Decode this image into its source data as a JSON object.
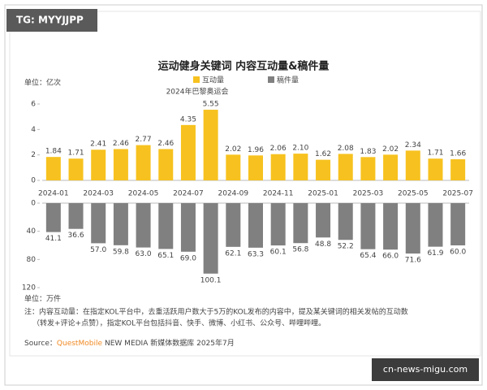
{
  "watermark": "TG: MYYJJPP",
  "site": "cn-news-migu.com",
  "notes": [
    "注：内容互动量：在指定KOL平台中，去重活跃用户数大于5万的KOL发布的内容中，提及某关键词的相关发帖的互动数",
    "（转发+评论+点赞），指定KOL平台包括抖音、快手、微博、小红书、公众号、哔哩哔哩。"
  ],
  "source": {
    "prefix": "Source：",
    "brand": "QuestMobile",
    "text": "NEW MEDIA 新媒体数据库 2025年7月"
  },
  "chart_data": [
    {
      "type": "bar",
      "title": "运动健身关键词 内容互动量&稿件量",
      "y_label": "单位：亿次",
      "annotation": "2024年巴黎奥运会",
      "categories": [
        "2024-01",
        null,
        "2024-03",
        null,
        "2024-05",
        null,
        "2024-07",
        null,
        "2024-09",
        null,
        "2024-11",
        null,
        "2025-01",
        null,
        "2025-03",
        null,
        "2025-05",
        null,
        "2025-07"
      ],
      "series": [
        {
          "name": "互动量",
          "color": "#f7c21f",
          "values": [
            1.84,
            1.71,
            2.41,
            2.46,
            2.77,
            2.46,
            4.35,
            5.55,
            2.02,
            1.96,
            2.06,
            2.1,
            1.62,
            2.08,
            1.83,
            2.02,
            2.34,
            1.71,
            1.66
          ],
          "value_labels": [
            "1.84",
            "1.71",
            "2.41",
            "2.46",
            "2.77",
            "2.46",
            "4.35",
            "5.55",
            "2.02",
            "1.96",
            "2.06",
            "2.10",
            "1.62",
            "2.08",
            "1.83",
            "2.02",
            "2.34",
            "1.71",
            "1.66"
          ]
        }
      ],
      "ylim": [
        0,
        6
      ],
      "yticks": [
        0,
        2,
        4,
        6
      ]
    },
    {
      "type": "bar",
      "inverted": true,
      "y_label": "单位：万件",
      "series": [
        {
          "name": "稿件量",
          "color": "#808080",
          "values": [
            41.1,
            36.6,
            57,
            59.8,
            63,
            65.1,
            69,
            100.1,
            62.1,
            63.3,
            60.1,
            56.8,
            48.8,
            52.2,
            65.4,
            66,
            71.6,
            61.9,
            60
          ],
          "value_labels": [
            "41.1",
            "36.6",
            "57.0",
            "59.8",
            "63.0",
            "65.1",
            "69.0",
            "100.1",
            "62.1",
            "63.3",
            "60.1",
            "56.8",
            "48.8",
            "52.2",
            "65.4",
            "66.0",
            "71.6",
            "61.9",
            "60.0"
          ]
        }
      ],
      "ylim": [
        0,
        120
      ],
      "yticks": [
        0,
        40,
        80,
        120
      ]
    }
  ]
}
